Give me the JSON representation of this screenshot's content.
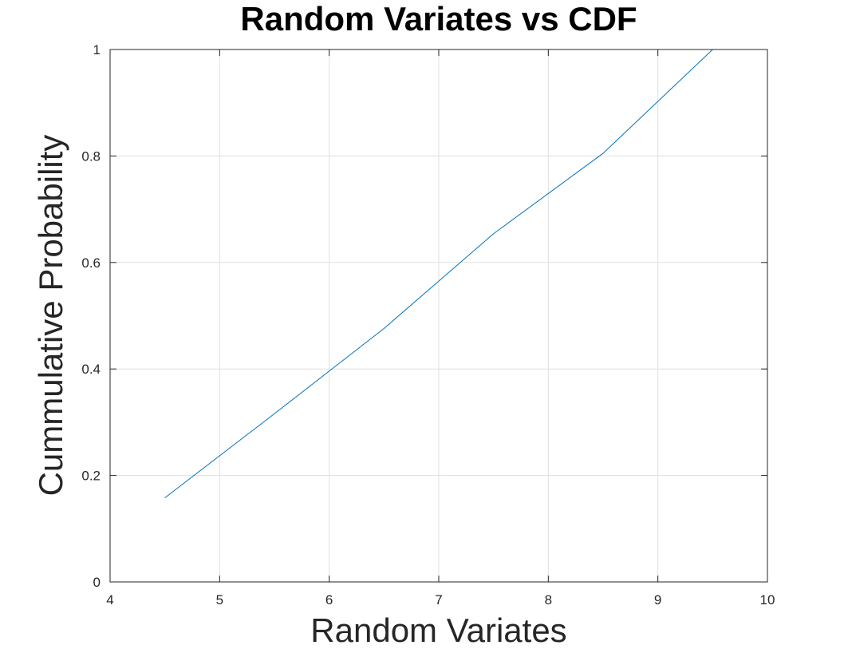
{
  "chart_data": {
    "type": "line",
    "title": "Random Variates vs CDF",
    "xlabel": "Random Variates",
    "ylabel": "Cummulative Probability",
    "xlim": [
      4,
      10
    ],
    "ylim": [
      0,
      1
    ],
    "xticks": [
      "4",
      "5",
      "6",
      "7",
      "8",
      "9",
      "10"
    ],
    "yticks": [
      "0",
      "0.2",
      "0.4",
      "0.6",
      "0.8",
      "1"
    ],
    "grid": true,
    "series": [
      {
        "color": "#0072bd",
        "x": [
          4.5,
          5.5,
          6.5,
          7.5,
          8.5,
          9.5
        ],
        "y": [
          0.158,
          0.316,
          0.476,
          0.654,
          0.805,
          1.0
        ]
      }
    ]
  }
}
